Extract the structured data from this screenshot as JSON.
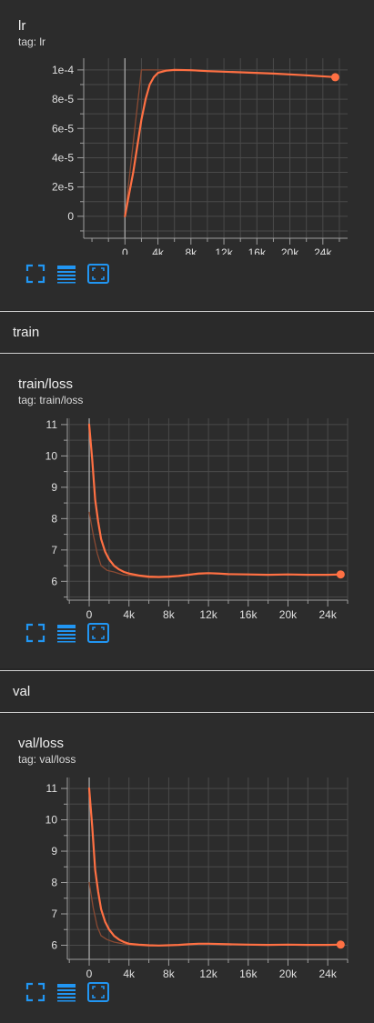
{
  "sections": [
    {
      "label": "train"
    },
    {
      "label": "val"
    }
  ],
  "cards": [
    {
      "title": "lr",
      "tag": "tag: lr"
    },
    {
      "title": "train/loss",
      "tag": "tag: train/loss"
    },
    {
      "title": "val/loss",
      "tag": "tag: val/loss"
    }
  ],
  "toolbar": {
    "fullscreen_icon": "fullscreen-icon",
    "data_table_icon": "data-table-icon",
    "fit_domain_icon": "fit-domain-icon"
  },
  "colors": {
    "series": "#ff7043",
    "series_raw": "#8a4a33",
    "toolbar_icon": "#2196f3",
    "grid": "#4a4a4a",
    "axis": "#9e9e9e"
  },
  "chart_data": [
    {
      "type": "line",
      "title": "lr",
      "xlim": [
        -5000,
        27000
      ],
      "ylim": [
        -1.5e-05,
        0.000108
      ],
      "x_ticks": [
        0,
        4000,
        8000,
        12000,
        16000,
        20000,
        24000
      ],
      "x_tick_labels": [
        "0",
        "4k",
        "8k",
        "12k",
        "16k",
        "20k",
        "24k"
      ],
      "y_ticks": [
        0,
        2e-05,
        4e-05,
        6e-05,
        8e-05,
        0.0001
      ],
      "y_tick_labels": [
        "0",
        "2e-5",
        "4e-5",
        "6e-5",
        "8e-5",
        "1e-4"
      ],
      "grid": true,
      "series": [
        {
          "smoothed": true,
          "x": [
            0,
            500,
            1000,
            1500,
            2000,
            2500,
            3000,
            3500,
            4000,
            5000,
            6000,
            8000,
            10000,
            14000,
            18000,
            22000,
            25500
          ],
          "y": [
            0,
            1.5e-05,
            3e-05,
            4.8e-05,
            6.6e-05,
            8e-05,
            9e-05,
            9.5e-05,
            9.8e-05,
            9.95e-05,
            0.0001,
            9.98e-05,
            9.92e-05,
            9.84e-05,
            9.75e-05,
            9.63e-05,
            9.51e-05
          ]
        },
        {
          "smoothed": false,
          "x": [
            0,
            2000,
            3000,
            6000,
            10000,
            14000,
            18000,
            22000,
            25500
          ],
          "y": [
            0,
            0.0001,
            0.0001,
            9.99e-05,
            9.91e-05,
            9.83e-05,
            9.74e-05,
            9.62e-05,
            9.5e-05
          ]
        }
      ],
      "endpoint": {
        "x": 25500,
        "y": 9.5e-05
      }
    },
    {
      "type": "line",
      "title": "train/loss",
      "xlim": [
        -2200,
        26000
      ],
      "ylim": [
        5.4,
        11.2
      ],
      "x_ticks": [
        0,
        4000,
        8000,
        12000,
        16000,
        20000,
        24000
      ],
      "x_tick_labels": [
        "0",
        "4k",
        "8k",
        "12k",
        "16k",
        "20k",
        "24k"
      ],
      "y_ticks": [
        6,
        7,
        8,
        9,
        10,
        11
      ],
      "y_tick_labels": [
        "6",
        "7",
        "8",
        "9",
        "10",
        "11"
      ],
      "grid": true,
      "series": [
        {
          "smoothed": true,
          "x": [
            0,
            300,
            600,
            900,
            1200,
            1600,
            2000,
            2500,
            3000,
            3500,
            4000,
            5000,
            6000,
            7000,
            8000,
            9000,
            10000,
            11000,
            12000,
            13000,
            14000,
            16000,
            18000,
            20000,
            22000,
            24000,
            25300
          ],
          "y": [
            11.0,
            9.9,
            8.6,
            7.9,
            7.35,
            6.95,
            6.7,
            6.5,
            6.38,
            6.3,
            6.25,
            6.19,
            6.15,
            6.14,
            6.15,
            6.17,
            6.21,
            6.25,
            6.26,
            6.25,
            6.23,
            6.22,
            6.21,
            6.22,
            6.21,
            6.21,
            6.22
          ]
        },
        {
          "smoothed": false,
          "x": [
            0,
            400,
            800,
            1200,
            1800,
            2500,
            3500,
            4500,
            6000,
            8000,
            10000,
            12000,
            14000,
            17000,
            20000,
            23000,
            25300
          ],
          "y": [
            8.2,
            7.5,
            6.9,
            6.5,
            6.35,
            6.3,
            6.2,
            6.18,
            6.12,
            6.13,
            6.2,
            6.25,
            6.22,
            6.21,
            6.22,
            6.2,
            6.2
          ]
        }
      ],
      "endpoint": {
        "x": 25300,
        "y": 6.22
      }
    },
    {
      "type": "line",
      "title": "val/loss",
      "xlim": [
        -2200,
        26000
      ],
      "ylim": [
        5.55,
        11.35
      ],
      "x_ticks": [
        0,
        4000,
        8000,
        12000,
        16000,
        20000,
        24000
      ],
      "x_tick_labels": [
        "0",
        "4k",
        "8k",
        "12k",
        "16k",
        "20k",
        "24k"
      ],
      "y_ticks": [
        6,
        7,
        8,
        9,
        10,
        11
      ],
      "y_tick_labels": [
        "6",
        "7",
        "8",
        "9",
        "10",
        "11"
      ],
      "grid": true,
      "series": [
        {
          "smoothed": true,
          "x": [
            0,
            300,
            600,
            900,
            1200,
            1600,
            2000,
            2500,
            3000,
            3500,
            4000,
            5000,
            6000,
            7000,
            8000,
            9000,
            10000,
            11000,
            12000,
            14000,
            16000,
            18000,
            20000,
            22000,
            24000,
            25300
          ],
          "y": [
            11.0,
            9.8,
            8.4,
            7.7,
            7.15,
            6.75,
            6.5,
            6.3,
            6.18,
            6.1,
            6.05,
            6.02,
            6.0,
            5.99,
            6.0,
            6.01,
            6.03,
            6.05,
            6.05,
            6.03,
            6.02,
            6.01,
            6.02,
            6.01,
            6.01,
            6.02
          ]
        },
        {
          "smoothed": false,
          "x": [
            0,
            400,
            800,
            1200,
            1800,
            2500,
            3500,
            4500,
            6000,
            8000,
            10000,
            12000,
            14000,
            17000,
            20000,
            23000,
            25300
          ],
          "y": [
            8.0,
            7.2,
            6.6,
            6.3,
            6.18,
            6.1,
            6.04,
            6.0,
            5.98,
            5.99,
            6.04,
            6.05,
            6.02,
            6.01,
            6.02,
            6.0,
            6.01
          ]
        }
      ],
      "endpoint": {
        "x": 25300,
        "y": 6.02
      }
    }
  ]
}
